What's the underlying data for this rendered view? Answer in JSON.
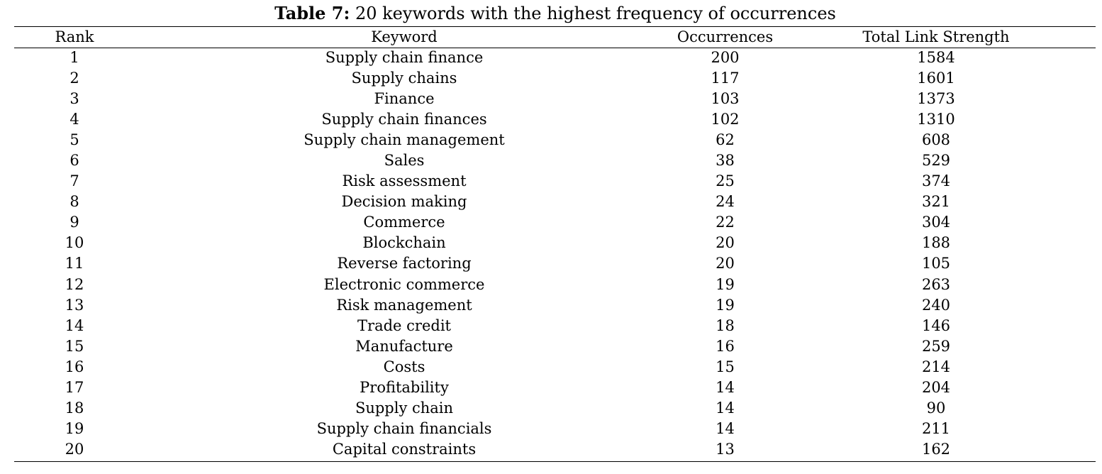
{
  "caption": {
    "label": "Table 7:",
    "text": " 20 keywords with the highest frequency of occurrences"
  },
  "table": {
    "headers": [
      "Rank",
      "Keyword",
      "Occurrences",
      "Total Link Strength"
    ],
    "rows": [
      [
        "1",
        "Supply chain finance",
        "200",
        "1584"
      ],
      [
        "2",
        "Supply chains",
        "117",
        "1601"
      ],
      [
        "3",
        "Finance",
        "103",
        "1373"
      ],
      [
        "4",
        "Supply chain finances",
        "102",
        "1310"
      ],
      [
        "5",
        "Supply chain management",
        "62",
        "608"
      ],
      [
        "6",
        "Sales",
        "38",
        "529"
      ],
      [
        "7",
        "Risk assessment",
        "25",
        "374"
      ],
      [
        "8",
        "Decision making",
        "24",
        "321"
      ],
      [
        "9",
        "Commerce",
        "22",
        "304"
      ],
      [
        "10",
        "Blockchain",
        "20",
        "188"
      ],
      [
        "11",
        "Reverse factoring",
        "20",
        "105"
      ],
      [
        "12",
        "Electronic commerce",
        "19",
        "263"
      ],
      [
        "13",
        "Risk management",
        "19",
        "240"
      ],
      [
        "14",
        "Trade credit",
        "18",
        "146"
      ],
      [
        "15",
        "Manufacture",
        "16",
        "259"
      ],
      [
        "16",
        "Costs",
        "15",
        "214"
      ],
      [
        "17",
        "Profitability",
        "14",
        "204"
      ],
      [
        "18",
        "Supply chain",
        "14",
        "90"
      ],
      [
        "19",
        "Supply chain financials",
        "14",
        "211"
      ],
      [
        "20",
        "Capital constraints",
        "13",
        "162"
      ]
    ]
  }
}
